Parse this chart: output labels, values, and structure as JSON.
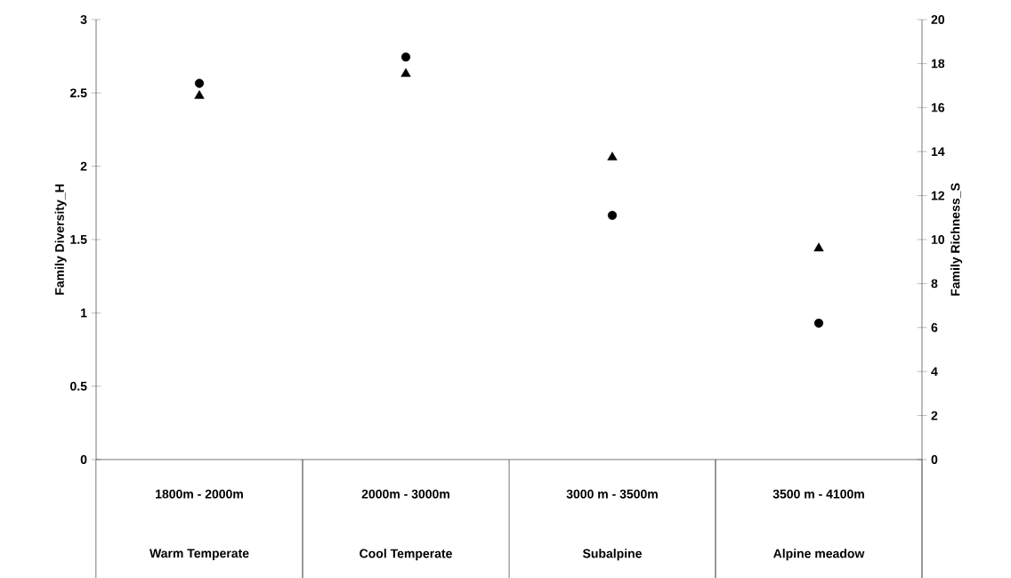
{
  "chart_data": {
    "type": "scatter",
    "categories": [
      "1800m - 2000m",
      "2000m - 3000m",
      "3000 m - 3500m",
      "3500 m - 4100m"
    ],
    "annotations": [
      "Warm Temperate",
      "Cool Temperate",
      "Subalpine",
      "Alpine meadow"
    ],
    "ylabel": "Family Diversity_H",
    "y2label": "Family Richness_S",
    "ylim": [
      0,
      3
    ],
    "yticks": [
      0,
      0.5,
      1,
      1.5,
      2,
      2.5,
      3
    ],
    "y2lim": [
      0,
      20
    ],
    "y2ticks": [
      0,
      2,
      4,
      6,
      8,
      10,
      12,
      14,
      16,
      18,
      20
    ],
    "series": [
      {
        "color": "#000000",
        "marker": "triangle",
        "values": [
          2.48,
          2.63,
          2.06,
          1.44
        ]
      },
      {
        "color": "#000000",
        "marker": "circle",
        "axis": "y2",
        "values": [
          17.1,
          18.3,
          11.1,
          6.2
        ]
      }
    ]
  }
}
